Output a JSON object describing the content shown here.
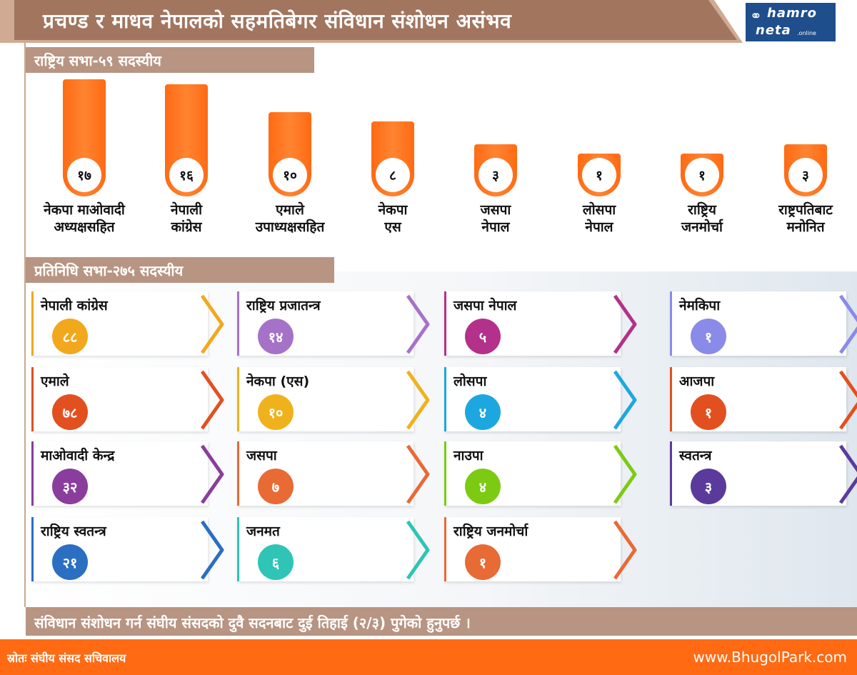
{
  "title": "प्रचण्ड र माधव नेपालको सहमतिबेगर संविधान संशोधन असंभव",
  "logo": {
    "line1": "hamro",
    "line2": "neta",
    "suffix": ".online"
  },
  "section1": "राष्ट्रिय सभा-५९ सदस्यीय",
  "section2": "प्रतिनिधि सभा-२७५ सदस्यीय",
  "chart_data": [
    {
      "type": "bar",
      "categories": [
        "नेकपा माओवादी अध्यक्षसहित",
        "नेपाली कांग्रेस",
        "एमाले उपाध्यक्षसहित",
        "नेकपा एस",
        "जसपा नेपाल",
        "लोसपा नेपाल",
        "राष्ट्रिय जनमोर्चा",
        "राष्ट्रपतिबाट मनोनित"
      ],
      "category_lines": [
        [
          "नेकपा माओवादी",
          "अध्यक्षसहित"
        ],
        [
          "नेपाली",
          "कांग्रेस"
        ],
        [
          "एमाले",
          "उपाध्यक्षसहित"
        ],
        [
          "नेकपा",
          "एस"
        ],
        [
          "जसपा",
          "नेपाल"
        ],
        [
          "लोसपा",
          "नेपाल"
        ],
        [
          "राष्ट्रिय",
          "जनमोर्चा"
        ],
        [
          "राष्ट्रपतिबाट",
          "मनोनित"
        ]
      ],
      "values": [
        17,
        16,
        10,
        8,
        3,
        1,
        1,
        3
      ],
      "value_labels": [
        "१७",
        "१६",
        "१०",
        "८",
        "३",
        "१",
        "१",
        "३"
      ],
      "color": "#ff7a1f"
    },
    {
      "type": "table",
      "columns": [
        [
          {
            "name": "नेपाली कांग्रेस",
            "value": 88,
            "label": "८८",
            "color": "#f2a81d"
          },
          {
            "name": "एमाले",
            "value": 78,
            "label": "७८",
            "color": "#e2501f"
          },
          {
            "name": "माओवादी केन्द्र",
            "value": 32,
            "label": "३२",
            "color": "#8a3d9c"
          },
          {
            "name": "राष्ट्रिय स्वतन्त्र",
            "value": 21,
            "label": "२१",
            "color": "#2a6fc1"
          }
        ],
        [
          {
            "name": "राष्ट्रिय प्रजातन्त्र",
            "value": 14,
            "label": "१४",
            "color": "#a672c8"
          },
          {
            "name": "नेकपा (एस)",
            "value": 10,
            "label": "१०",
            "color": "#f0b21c"
          },
          {
            "name": "जसपा",
            "value": 7,
            "label": "७",
            "color": "#e86a35"
          },
          {
            "name": "जनमत",
            "value": 6,
            "label": "६",
            "color": "#2ec4b6"
          }
        ],
        [
          {
            "name": "जसपा नेपाल",
            "value": 5,
            "label": "५",
            "color": "#b3318a"
          },
          {
            "name": "लोसपा",
            "value": 4,
            "label": "४",
            "color": "#1da7e0"
          },
          {
            "name": "नाउपा",
            "value": 4,
            "label": "४",
            "color": "#7ccb12"
          },
          {
            "name": "राष्ट्रिय जनमोर्चा",
            "value": 1,
            "label": "१",
            "color": "#e86a35"
          }
        ],
        [
          {
            "name": "नेमकिपा",
            "value": 1,
            "label": "१",
            "color": "#8a8ae8"
          },
          {
            "name": "आजपा",
            "value": 1,
            "label": "१",
            "color": "#e2501f"
          },
          {
            "name": "स्वतन्त्र",
            "value": 3,
            "label": "३",
            "color": "#5a3b9c"
          }
        ]
      ]
    }
  ],
  "footer_note": "संविधान संशोधन गर्न संघीय संसदको दुवै सदनबाट दुई तिहाई (२/३) पुगेको हुनुपर्छ ।",
  "source": "स्रोतः संघीय संसद सचिवालय",
  "website": "www.BhugolPark.com"
}
